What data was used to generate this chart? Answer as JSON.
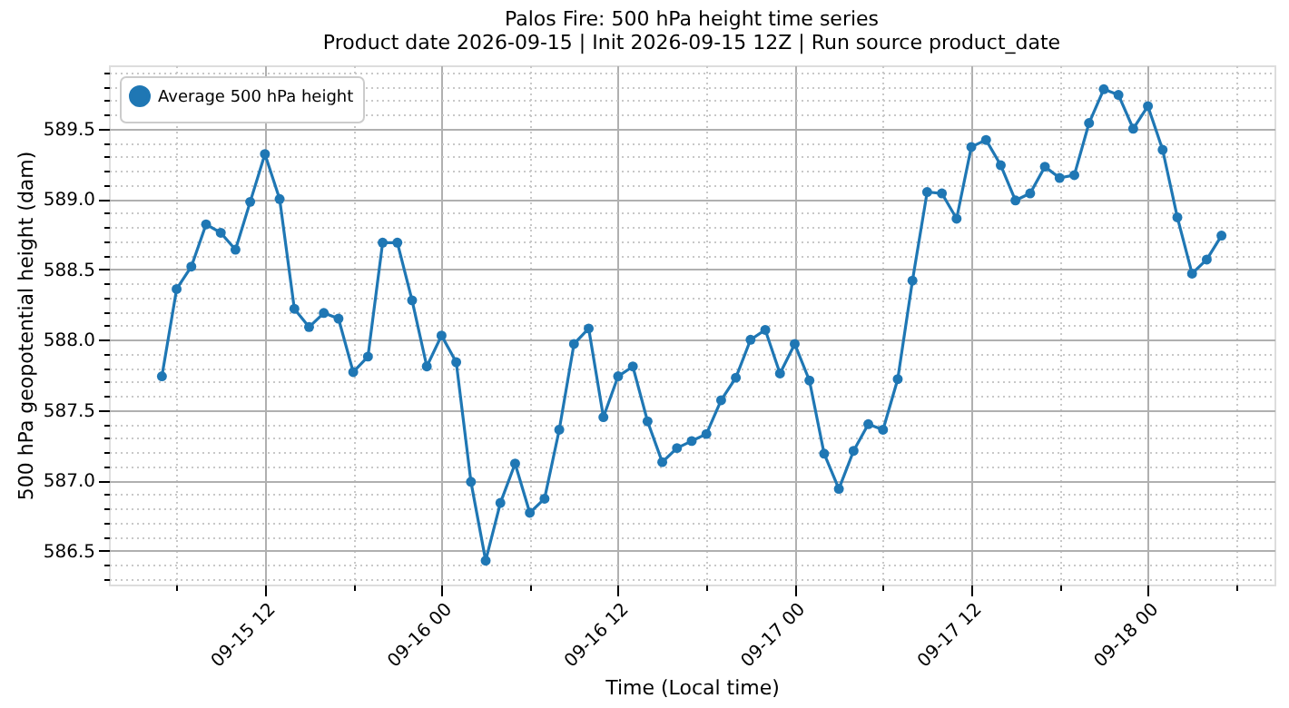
{
  "chart_data": {
    "type": "line",
    "title": "Palos Fire: 500 hPa height time series",
    "subtitle": "Product date 2026-09-15 | Init 2026-09-15 12Z | Run source product_date",
    "xlabel": "Time (Local time)",
    "ylabel": "500 hPa geopotential height (dam)",
    "x": [
      "2026-09-15T05:00",
      "2026-09-15T06:00",
      "2026-09-15T07:00",
      "2026-09-15T08:00",
      "2026-09-15T09:00",
      "2026-09-15T10:00",
      "2026-09-15T11:00",
      "2026-09-15T12:00",
      "2026-09-15T13:00",
      "2026-09-15T14:00",
      "2026-09-15T15:00",
      "2026-09-15T16:00",
      "2026-09-15T17:00",
      "2026-09-15T18:00",
      "2026-09-15T19:00",
      "2026-09-15T20:00",
      "2026-09-15T21:00",
      "2026-09-15T22:00",
      "2026-09-15T23:00",
      "2026-09-16T00:00",
      "2026-09-16T01:00",
      "2026-09-16T02:00",
      "2026-09-16T03:00",
      "2026-09-16T04:00",
      "2026-09-16T05:00",
      "2026-09-16T06:00",
      "2026-09-16T07:00",
      "2026-09-16T08:00",
      "2026-09-16T09:00",
      "2026-09-16T10:00",
      "2026-09-16T11:00",
      "2026-09-16T12:00",
      "2026-09-16T13:00",
      "2026-09-16T14:00",
      "2026-09-16T15:00",
      "2026-09-16T16:00",
      "2026-09-16T17:00",
      "2026-09-16T18:00",
      "2026-09-16T19:00",
      "2026-09-16T20:00",
      "2026-09-16T21:00",
      "2026-09-16T22:00",
      "2026-09-16T23:00",
      "2026-09-17T00:00",
      "2026-09-17T01:00",
      "2026-09-17T02:00",
      "2026-09-17T03:00",
      "2026-09-17T04:00",
      "2026-09-17T05:00",
      "2026-09-17T06:00",
      "2026-09-17T07:00",
      "2026-09-17T08:00",
      "2026-09-17T09:00",
      "2026-09-17T10:00",
      "2026-09-17T11:00",
      "2026-09-17T12:00",
      "2026-09-17T13:00",
      "2026-09-17T14:00",
      "2026-09-17T15:00",
      "2026-09-17T16:00",
      "2026-09-17T17:00",
      "2026-09-17T18:00",
      "2026-09-17T19:00",
      "2026-09-17T20:00",
      "2026-09-17T21:00",
      "2026-09-17T22:00",
      "2026-09-17T23:00",
      "2026-09-18T00:00",
      "2026-09-18T01:00",
      "2026-09-18T02:00",
      "2026-09-18T03:00",
      "2026-09-18T04:00",
      "2026-09-18T05:00"
    ],
    "series": [
      {
        "name": "Average 500 hPa height",
        "color": "#1f77b4",
        "values": [
          587.74,
          588.36,
          588.52,
          588.82,
          588.76,
          588.64,
          588.98,
          589.32,
          589.0,
          588.22,
          588.09,
          588.19,
          588.15,
          587.77,
          587.88,
          588.69,
          588.69,
          588.28,
          587.81,
          588.03,
          587.84,
          586.99,
          586.43,
          586.84,
          587.12,
          586.77,
          586.87,
          587.36,
          587.97,
          588.08,
          587.45,
          587.74,
          587.81,
          587.42,
          587.13,
          587.23,
          587.28,
          587.33,
          587.57,
          587.73,
          588.0,
          588.07,
          587.76,
          587.97,
          587.71,
          587.19,
          586.94,
          587.21,
          587.4,
          587.36,
          587.72,
          588.42,
          589.05,
          589.04,
          588.86,
          589.37,
          589.42,
          589.24,
          588.99,
          589.04,
          589.23,
          589.15,
          589.17,
          589.54,
          589.78,
          589.74,
          589.5,
          589.66,
          589.35,
          588.87,
          588.47,
          588.57,
          588.74
        ]
      }
    ],
    "xlim": [
      "2026-09-15T01:24",
      "2026-09-18T08:36"
    ],
    "xticks": [
      {
        "value": "2026-09-15T06:00",
        "label": null
      },
      {
        "value": "2026-09-15T12:00",
        "label": "09-15 12"
      },
      {
        "value": "2026-09-15T18:00",
        "label": null
      },
      {
        "value": "2026-09-16T00:00",
        "label": "09-16 00"
      },
      {
        "value": "2026-09-16T06:00",
        "label": null
      },
      {
        "value": "2026-09-16T12:00",
        "label": "09-16 12"
      },
      {
        "value": "2026-09-16T18:00",
        "label": null
      },
      {
        "value": "2026-09-17T00:00",
        "label": "09-17 00"
      },
      {
        "value": "2026-09-17T06:00",
        "label": null
      },
      {
        "value": "2026-09-17T12:00",
        "label": "09-17 12"
      },
      {
        "value": "2026-09-17T18:00",
        "label": null
      },
      {
        "value": "2026-09-18T00:00",
        "label": "09-18 00"
      },
      {
        "value": "2026-09-18T06:00",
        "label": null
      }
    ],
    "ylim": [
      586.26,
      589.95
    ],
    "yticks": [
      {
        "value": 586.3,
        "label": null
      },
      {
        "value": 586.4,
        "label": null
      },
      {
        "value": 586.5,
        "label": "586.5"
      },
      {
        "value": 586.6,
        "label": null
      },
      {
        "value": 586.7,
        "label": null
      },
      {
        "value": 586.8,
        "label": null
      },
      {
        "value": 586.9,
        "label": null
      },
      {
        "value": 587,
        "label": "587.0"
      },
      {
        "value": 587.1,
        "label": null
      },
      {
        "value": 587.2,
        "label": null
      },
      {
        "value": 587.3,
        "label": null
      },
      {
        "value": 587.4,
        "label": null
      },
      {
        "value": 587.5,
        "label": "587.5"
      },
      {
        "value": 587.6,
        "label": null
      },
      {
        "value": 587.7,
        "label": null
      },
      {
        "value": 587.8,
        "label": null
      },
      {
        "value": 587.9,
        "label": null
      },
      {
        "value": 588,
        "label": "588.0"
      },
      {
        "value": 588.1,
        "label": null
      },
      {
        "value": 588.2,
        "label": null
      },
      {
        "value": 588.3,
        "label": null
      },
      {
        "value": 588.4,
        "label": null
      },
      {
        "value": 588.5,
        "label": "588.5"
      },
      {
        "value": 588.6,
        "label": null
      },
      {
        "value": 588.7,
        "label": null
      },
      {
        "value": 588.8,
        "label": null
      },
      {
        "value": 588.9,
        "label": null
      },
      {
        "value": 589,
        "label": "589.0"
      },
      {
        "value": 589.1,
        "label": null
      },
      {
        "value": 589.2,
        "label": null
      },
      {
        "value": 589.3,
        "label": null
      },
      {
        "value": 589.4,
        "label": null
      },
      {
        "value": 589.5,
        "label": "589.5"
      },
      {
        "value": 589.6,
        "label": null
      },
      {
        "value": 589.7,
        "label": null
      },
      {
        "value": 589.8,
        "label": null
      },
      {
        "value": 589.9,
        "label": null
      }
    ],
    "grid": true,
    "legend": "top left",
    "marker": "circle",
    "line_style": "solid"
  }
}
